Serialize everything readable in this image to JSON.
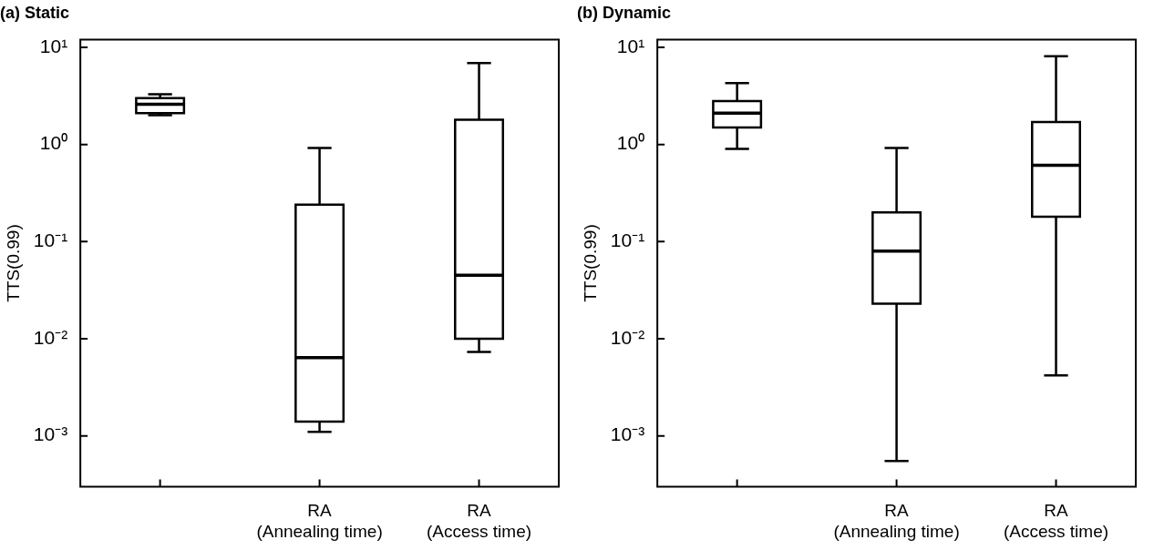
{
  "chart_data": [
    {
      "type": "box",
      "title": "(a) Static",
      "ylabel": "TTS(0.99)",
      "categories": [
        null,
        "RA (Annealing time)",
        "RA (Access time)"
      ],
      "log": true,
      "ylim": [
        0.0003,
        12
      ],
      "yticks": [
        {
          "value": 0.001,
          "label": "10⁻³"
        },
        {
          "value": 0.01,
          "label": "10⁻²"
        },
        {
          "value": 0.1,
          "label": "10⁻¹"
        },
        {
          "value": 1,
          "label": "10⁰"
        },
        {
          "value": 10,
          "label": "10¹"
        }
      ],
      "boxes": [
        {
          "low": 2.0,
          "q1": 2.1,
          "median": 2.6,
          "q3": 3.0,
          "high": 3.3
        },
        {
          "low": 0.0011,
          "q1": 0.0014,
          "median": 0.0064,
          "q3": 0.24,
          "high": 0.92
        },
        {
          "low": 0.0073,
          "q1": 0.01,
          "median": 0.045,
          "q3": 1.8,
          "high": 6.9
        }
      ]
    },
    {
      "type": "box",
      "title": "(b) Dynamic",
      "ylabel": "TTS(0.99)",
      "categories": [
        null,
        "RA (Annealing time)",
        "RA (Access time)"
      ],
      "log": true,
      "ylim": [
        0.0003,
        12
      ],
      "yticks": [
        {
          "value": 0.001,
          "label": "10⁻³"
        },
        {
          "value": 0.01,
          "label": "10⁻²"
        },
        {
          "value": 0.1,
          "label": "10⁻¹"
        },
        {
          "value": 1,
          "label": "10⁰"
        },
        {
          "value": 10,
          "label": "10¹"
        }
      ],
      "boxes": [
        {
          "low": 0.9,
          "q1": 1.5,
          "median": 2.1,
          "q3": 2.8,
          "high": 4.3
        },
        {
          "low": 0.00055,
          "q1": 0.023,
          "median": 0.08,
          "q3": 0.2,
          "high": 0.92
        },
        {
          "low": 0.0042,
          "q1": 0.18,
          "median": 0.61,
          "q3": 1.7,
          "high": 8.1
        }
      ]
    }
  ]
}
